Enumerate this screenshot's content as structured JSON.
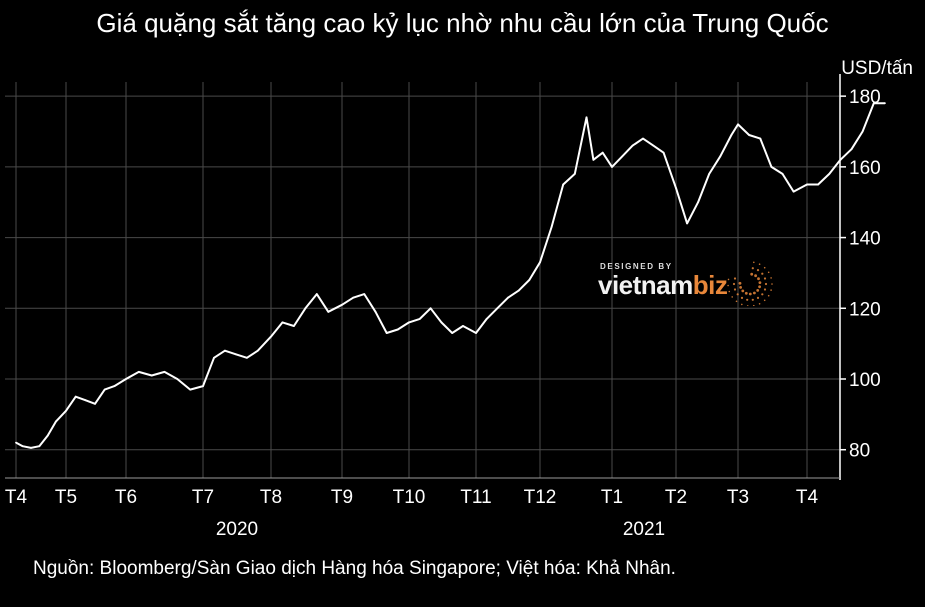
{
  "title": "Giá quặng sắt tăng cao kỷ lục nhờ nhu cầu lớn của Trung Quốc",
  "unit": "USD/tấn",
  "source": "Nguồn: Bloomberg/Sàn Giao dịch Hàng hóa Singapore; Việt hóa: Khả Nhân.",
  "watermark": {
    "small": "DESIGNED BY",
    "main": "vietnam",
    "accent": "biz"
  },
  "colors": {
    "background": "#000000",
    "line": "#ffffff",
    "grid": "#4a4a4a",
    "accent": "#e8873a"
  },
  "chart_data": {
    "type": "line",
    "title": "Giá quặng sắt tăng cao kỷ lục nhờ nhu cầu lớn của Trung Quốc",
    "ylabel": "USD/tấn",
    "xlabel": "",
    "ylim": [
      72,
      184
    ],
    "yticks": [
      80,
      100,
      120,
      140,
      160,
      180
    ],
    "grid": true,
    "legend": "none",
    "y_axis_side": "right",
    "x_tick_labels": [
      "T4",
      "T5",
      "T6",
      "T7",
      "T8",
      "T9",
      "T10",
      "T11",
      "T12",
      "T1",
      "T2",
      "T3",
      "T4"
    ],
    "year_labels": [
      {
        "label": "2020",
        "after_tick": "T7"
      },
      {
        "label": "2021",
        "after_tick": "T1"
      }
    ],
    "series": [
      {
        "points": [
          [
            "2020-04-01",
            82
          ],
          [
            "2020-04-05",
            81
          ],
          [
            "2020-04-10",
            80.5
          ],
          [
            "2020-04-15",
            81
          ],
          [
            "2020-04-20",
            84
          ],
          [
            "2020-04-25",
            88
          ],
          [
            "2020-05-01",
            91
          ],
          [
            "2020-05-06",
            95
          ],
          [
            "2020-05-11",
            94
          ],
          [
            "2020-05-16",
            93
          ],
          [
            "2020-05-21",
            97
          ],
          [
            "2020-05-26",
            98
          ],
          [
            "2020-06-01",
            100
          ],
          [
            "2020-06-06",
            102
          ],
          [
            "2020-06-11",
            101
          ],
          [
            "2020-06-16",
            102
          ],
          [
            "2020-06-21",
            100
          ],
          [
            "2020-06-26",
            97
          ],
          [
            "2020-07-01",
            98
          ],
          [
            "2020-07-06",
            106
          ],
          [
            "2020-07-11",
            108
          ],
          [
            "2020-07-16",
            107
          ],
          [
            "2020-07-21",
            106
          ],
          [
            "2020-07-26",
            108
          ],
          [
            "2020-08-01",
            112
          ],
          [
            "2020-08-06",
            116
          ],
          [
            "2020-08-11",
            115
          ],
          [
            "2020-08-16",
            120
          ],
          [
            "2020-08-21",
            124
          ],
          [
            "2020-08-26",
            119
          ],
          [
            "2020-09-01",
            121
          ],
          [
            "2020-09-06",
            123
          ],
          [
            "2020-09-11",
            124
          ],
          [
            "2020-09-16",
            119
          ],
          [
            "2020-09-21",
            113
          ],
          [
            "2020-09-26",
            114
          ],
          [
            "2020-10-01",
            116
          ],
          [
            "2020-10-06",
            117
          ],
          [
            "2020-10-11",
            120
          ],
          [
            "2020-10-16",
            116
          ],
          [
            "2020-10-21",
            113
          ],
          [
            "2020-10-26",
            115
          ],
          [
            "2020-11-01",
            113
          ],
          [
            "2020-11-06",
            117
          ],
          [
            "2020-11-11",
            120
          ],
          [
            "2020-11-16",
            123
          ],
          [
            "2020-11-21",
            125
          ],
          [
            "2020-11-26",
            128
          ],
          [
            "2020-12-01",
            133
          ],
          [
            "2020-12-06",
            143
          ],
          [
            "2020-12-11",
            155
          ],
          [
            "2020-12-16",
            158
          ],
          [
            "2020-12-21",
            174
          ],
          [
            "2020-12-24",
            162
          ],
          [
            "2020-12-28",
            164
          ],
          [
            "2021-01-01",
            160
          ],
          [
            "2021-01-06",
            163
          ],
          [
            "2021-01-11",
            166
          ],
          [
            "2021-01-16",
            168
          ],
          [
            "2021-01-21",
            166
          ],
          [
            "2021-01-26",
            164
          ],
          [
            "2021-02-01",
            154
          ],
          [
            "2021-02-06",
            144
          ],
          [
            "2021-02-11",
            150
          ],
          [
            "2021-02-16",
            158
          ],
          [
            "2021-02-21",
            163
          ],
          [
            "2021-02-26",
            169
          ],
          [
            "2021-03-01",
            172
          ],
          [
            "2021-03-06",
            169
          ],
          [
            "2021-03-11",
            168
          ],
          [
            "2021-03-16",
            160
          ],
          [
            "2021-03-21",
            158
          ],
          [
            "2021-03-26",
            153
          ],
          [
            "2021-04-01",
            155
          ],
          [
            "2021-04-06",
            155
          ],
          [
            "2021-04-11",
            158
          ],
          [
            "2021-04-16",
            162
          ],
          [
            "2021-04-21",
            165
          ],
          [
            "2021-04-26",
            170
          ],
          [
            "2021-05-01",
            178
          ],
          [
            "2021-05-06",
            178
          ]
        ]
      }
    ]
  }
}
